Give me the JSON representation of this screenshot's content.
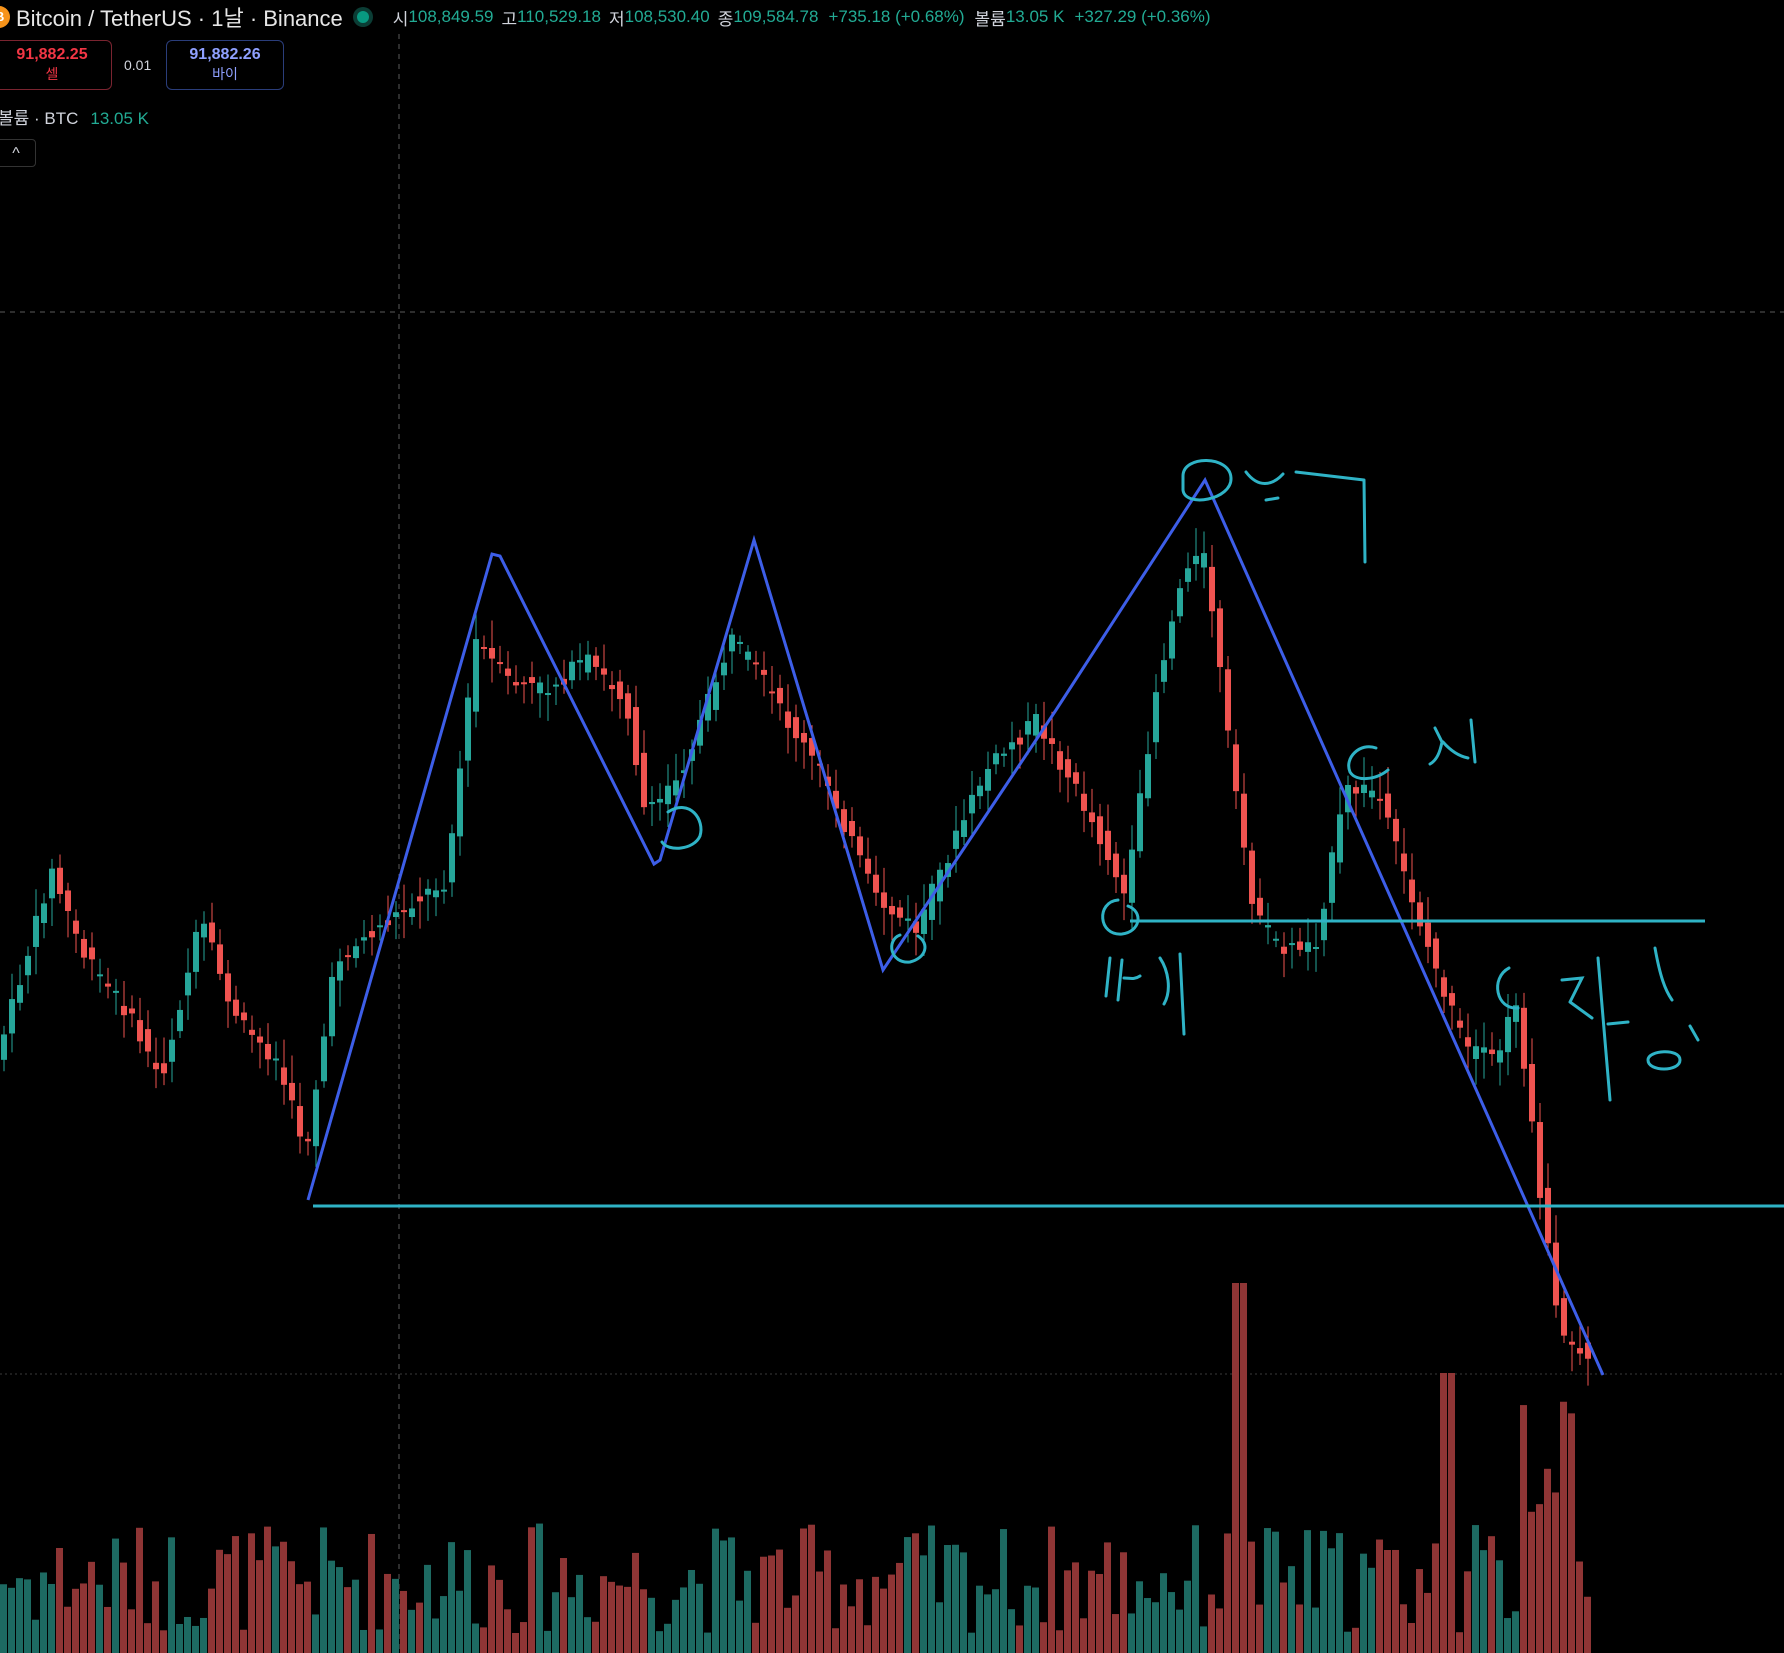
{
  "header": {
    "coin_icon": "bitcoin-icon",
    "symbol_title": "Bitcoin / TetherUS · 1날 · Binance",
    "ohlc": [
      {
        "key": "시",
        "value": "108,849.59"
      },
      {
        "key": "고",
        "value": "110,529.18"
      },
      {
        "key": "저",
        "value": "108,530.40"
      },
      {
        "key": "종",
        "value": "109,584.78"
      }
    ],
    "change": "+735.18 (+0.68%)",
    "volume_key": "볼륨",
    "volume_value": "13.05 K",
    "volume_change": "+327.29 (+0.36%)"
  },
  "trade": {
    "sell_price": "91,882.25",
    "sell_label": "셀",
    "spread": "0.01",
    "buy_price": "91,882.26",
    "buy_label": "바이"
  },
  "volume_legend": {
    "label": "볼륨 · BTC",
    "value": "13.05 K"
  },
  "collapse_button": "^",
  "colors": {
    "up": "#26a69a",
    "down": "#ef5350",
    "vol_up": "#1d6a62",
    "vol_down": "#8f3535",
    "trendline": "#3d5ee8",
    "annotation": "#2fb3c6"
  },
  "annotations_handwritten": [
    "어깨",
    "머리",
    "어깨",
    "저항"
  ]
}
